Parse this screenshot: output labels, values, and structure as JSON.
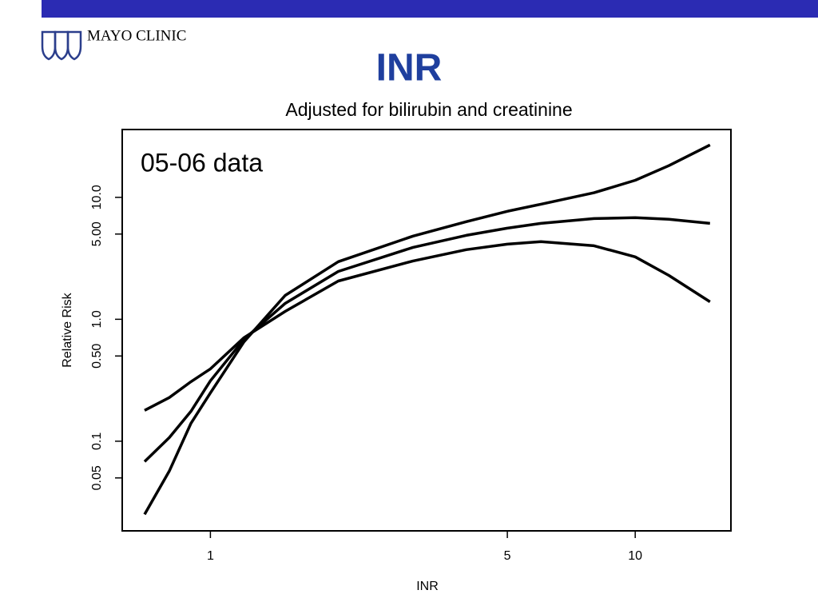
{
  "header": {
    "logo": "MAYO CLINIC"
  },
  "chart_data": {
    "type": "line",
    "title": "INR",
    "subtitle": "Adjusted for bilirubin and creatinine",
    "annotation": "05-06 data",
    "xlabel": "INR",
    "ylabel": "Relative Risk",
    "xscale": "log",
    "yscale": "log",
    "grid": false,
    "xlim": [
      0.62,
      16.8
    ],
    "ylim": [
      0.0184,
      36
    ],
    "xticks": [
      1,
      5,
      10
    ],
    "yticks": [
      {
        "value": 0.05,
        "label": "0.05"
      },
      {
        "value": 0.1,
        "label": "0.1"
      },
      {
        "value": 0.5,
        "label": "0.50"
      },
      {
        "value": 1,
        "label": "1.0"
      },
      {
        "value": 5,
        "label": "5.00"
      },
      {
        "value": 10,
        "label": "10.0"
      }
    ],
    "x": [
      0.7,
      0.8,
      0.9,
      1,
      1.2,
      1.5,
      2,
      3,
      4,
      5,
      6,
      8,
      10,
      12,
      15
    ],
    "series": [
      {
        "color": "#000000",
        "values": [
          0.0251,
          0.0568,
          0.1405,
          0.249,
          0.655,
          1.57,
          2.97,
          4.81,
          6.31,
          7.68,
          8.79,
          10.9,
          13.8,
          18.2,
          26.9
        ]
      },
      {
        "color": "#000000",
        "values": [
          0.068,
          0.107,
          0.176,
          0.313,
          0.686,
          1.35,
          2.47,
          3.89,
          4.88,
          5.59,
          6.12,
          6.7,
          6.81,
          6.61,
          6.12
        ]
      },
      {
        "color": "#000000",
        "values": [
          0.179,
          0.228,
          0.308,
          0.392,
          0.707,
          1.16,
          2.06,
          3.01,
          3.72,
          4.13,
          4.33,
          4.01,
          3.25,
          2.29,
          1.39
        ]
      }
    ]
  }
}
